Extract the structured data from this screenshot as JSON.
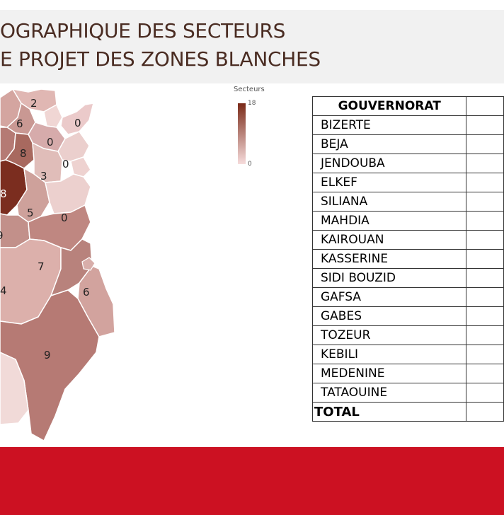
{
  "title": {
    "line1": "OGRAPHIQUE DES SECTEURS",
    "line2": "E PROJET DES ZONES BLANCHES"
  },
  "legend": {
    "title": "Secteurs",
    "max": "18",
    "min": "0",
    "color_max": "#7a2a18",
    "color_min": "#f6dcdc"
  },
  "map_labels": [
    "2",
    "6",
    "0",
    "0",
    "8",
    "0",
    "3",
    "8",
    "5",
    "0",
    "9",
    "7",
    "4",
    "6",
    "9"
  ],
  "table": {
    "header": "GOUVERNORAT",
    "rows": [
      "BIZERTE",
      "BEJA",
      "JENDOUBA",
      "ELKEF",
      "SILIANA",
      "MAHDIA",
      "KAIROUAN",
      "KASSERINE",
      "SIDI BOUZID",
      "GAFSA",
      "GABES",
      "TOZEUR",
      "KEBILI",
      "MEDENINE",
      "TATAOUINE"
    ],
    "total_label": "TOTAL"
  },
  "colors": {
    "footer": "#cc1122",
    "title_text": "#4a2c22"
  }
}
